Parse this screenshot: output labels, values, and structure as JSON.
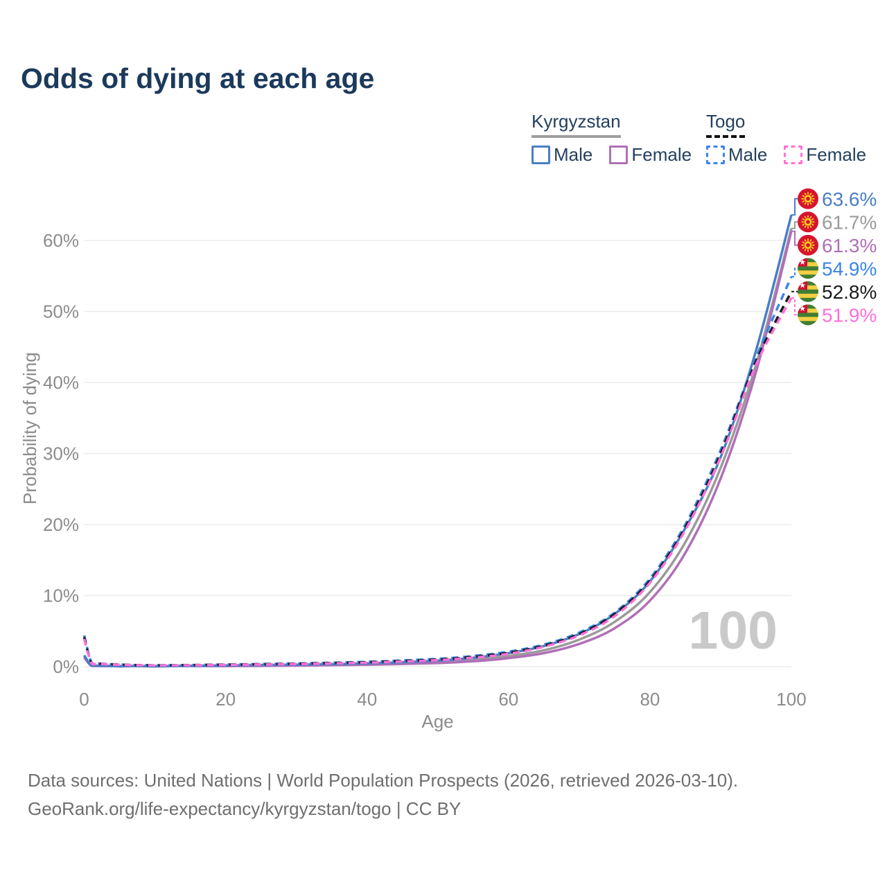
{
  "title": "Odds of dying at each age",
  "watermark_age": "100",
  "legend": {
    "groups": [
      {
        "name": "Kyrgyzstan",
        "underline_color": "#9e9e9e",
        "underline_style": "solid",
        "items": [
          {
            "label": "Male",
            "color": "#4a7ec4",
            "dashed": false
          },
          {
            "label": "Female",
            "color": "#b06fb8",
            "dashed": false
          }
        ]
      },
      {
        "name": "Togo",
        "underline_color": "#111111",
        "underline_style": "dashed",
        "items": [
          {
            "label": "Male",
            "color": "#3b85e8",
            "dashed": true
          },
          {
            "label": "Female",
            "color": "#ff70d8",
            "dashed": true
          }
        ]
      }
    ]
  },
  "footer": {
    "line1": "Data sources: United Nations | World Population Prospects (2026, retrieved 2026-03-10).",
    "line2": "GeoRank.org/life-expectancy/kyrgyzstan/togo | CC BY"
  },
  "chart_data": {
    "type": "line",
    "title": "Odds of dying at each age",
    "xlabel": "Age",
    "ylabel": "Probability of dying",
    "xlim": [
      0,
      100
    ],
    "ylim_percent": [
      0,
      66
    ],
    "x_ticks": [
      0,
      20,
      40,
      60,
      80,
      100
    ],
    "y_ticks_percent": [
      0,
      10,
      20,
      30,
      40,
      50,
      60
    ],
    "grid": "horizontal",
    "legend_position": "top-right",
    "current_age_indicator": "100",
    "ages": [
      0,
      1,
      2,
      5,
      10,
      20,
      30,
      40,
      50,
      55,
      60,
      65,
      70,
      75,
      80,
      85,
      90,
      95,
      100
    ],
    "series": [
      {
        "name": "Kyrgyzstan (both sexes)",
        "country": "Kyrgyzstan",
        "sex": "Both",
        "flag": "kyrgyzstan",
        "color": "#9a9a9a",
        "dashed": false,
        "end_label": "61.7%",
        "values": [
          1.45,
          0.13,
          0.1,
          0.05,
          0.04,
          0.12,
          0.21,
          0.35,
          0.65,
          0.95,
          1.5,
          2.3,
          3.8,
          6.3,
          10.5,
          17.5,
          28.0,
          42.5,
          61.7
        ]
      },
      {
        "name": "Kyrgyzstan Female",
        "country": "Kyrgyzstan",
        "sex": "Female",
        "flag": "kyrgyzstan",
        "color": "#b06fb8",
        "dashed": false,
        "end_label": "61.3%",
        "values": [
          1.3,
          0.11,
          0.09,
          0.04,
          0.04,
          0.08,
          0.15,
          0.27,
          0.5,
          0.75,
          1.2,
          1.9,
          3.2,
          5.4,
          9.3,
          16.0,
          26.5,
          41.5,
          61.3
        ]
      },
      {
        "name": "Kyrgyzstan Male",
        "country": "Kyrgyzstan",
        "sex": "Male",
        "flag": "kyrgyzstan",
        "color": "#4a7ec4",
        "dashed": false,
        "end_label": "63.6%",
        "values": [
          1.6,
          0.15,
          0.12,
          0.06,
          0.05,
          0.16,
          0.28,
          0.45,
          0.85,
          1.25,
          1.9,
          2.9,
          4.6,
          7.4,
          12.0,
          19.5,
          29.5,
          44.5,
          63.6
        ]
      },
      {
        "name": "Togo Male",
        "country": "Togo",
        "sex": "Male",
        "flag": "togo",
        "color": "#3b85e8",
        "dashed": true,
        "end_label": "54.9%",
        "values": [
          4.4,
          0.65,
          0.45,
          0.3,
          0.2,
          0.3,
          0.45,
          0.68,
          1.1,
          1.5,
          2.1,
          3.1,
          4.8,
          7.6,
          12.4,
          20.0,
          30.5,
          43.5,
          54.9
        ]
      },
      {
        "name": "Togo (both sexes)",
        "country": "Togo",
        "sex": "Both",
        "flag": "togo",
        "color": "#1a1a1a",
        "dashed": true,
        "end_label": "52.8%",
        "values": [
          4.15,
          0.6,
          0.42,
          0.28,
          0.19,
          0.27,
          0.41,
          0.62,
          1.0,
          1.38,
          1.95,
          2.95,
          4.6,
          7.4,
          12.1,
          19.6,
          30.0,
          43.0,
          52.8
        ]
      },
      {
        "name": "Togo Female",
        "country": "Togo",
        "sex": "Female",
        "flag": "togo",
        "color": "#ff70d8",
        "dashed": true,
        "end_label": "51.9%",
        "values": [
          3.9,
          0.56,
          0.4,
          0.26,
          0.18,
          0.24,
          0.37,
          0.56,
          0.92,
          1.27,
          1.8,
          2.8,
          4.4,
          7.1,
          11.8,
          19.2,
          29.5,
          42.5,
          51.9
        ]
      }
    ]
  }
}
